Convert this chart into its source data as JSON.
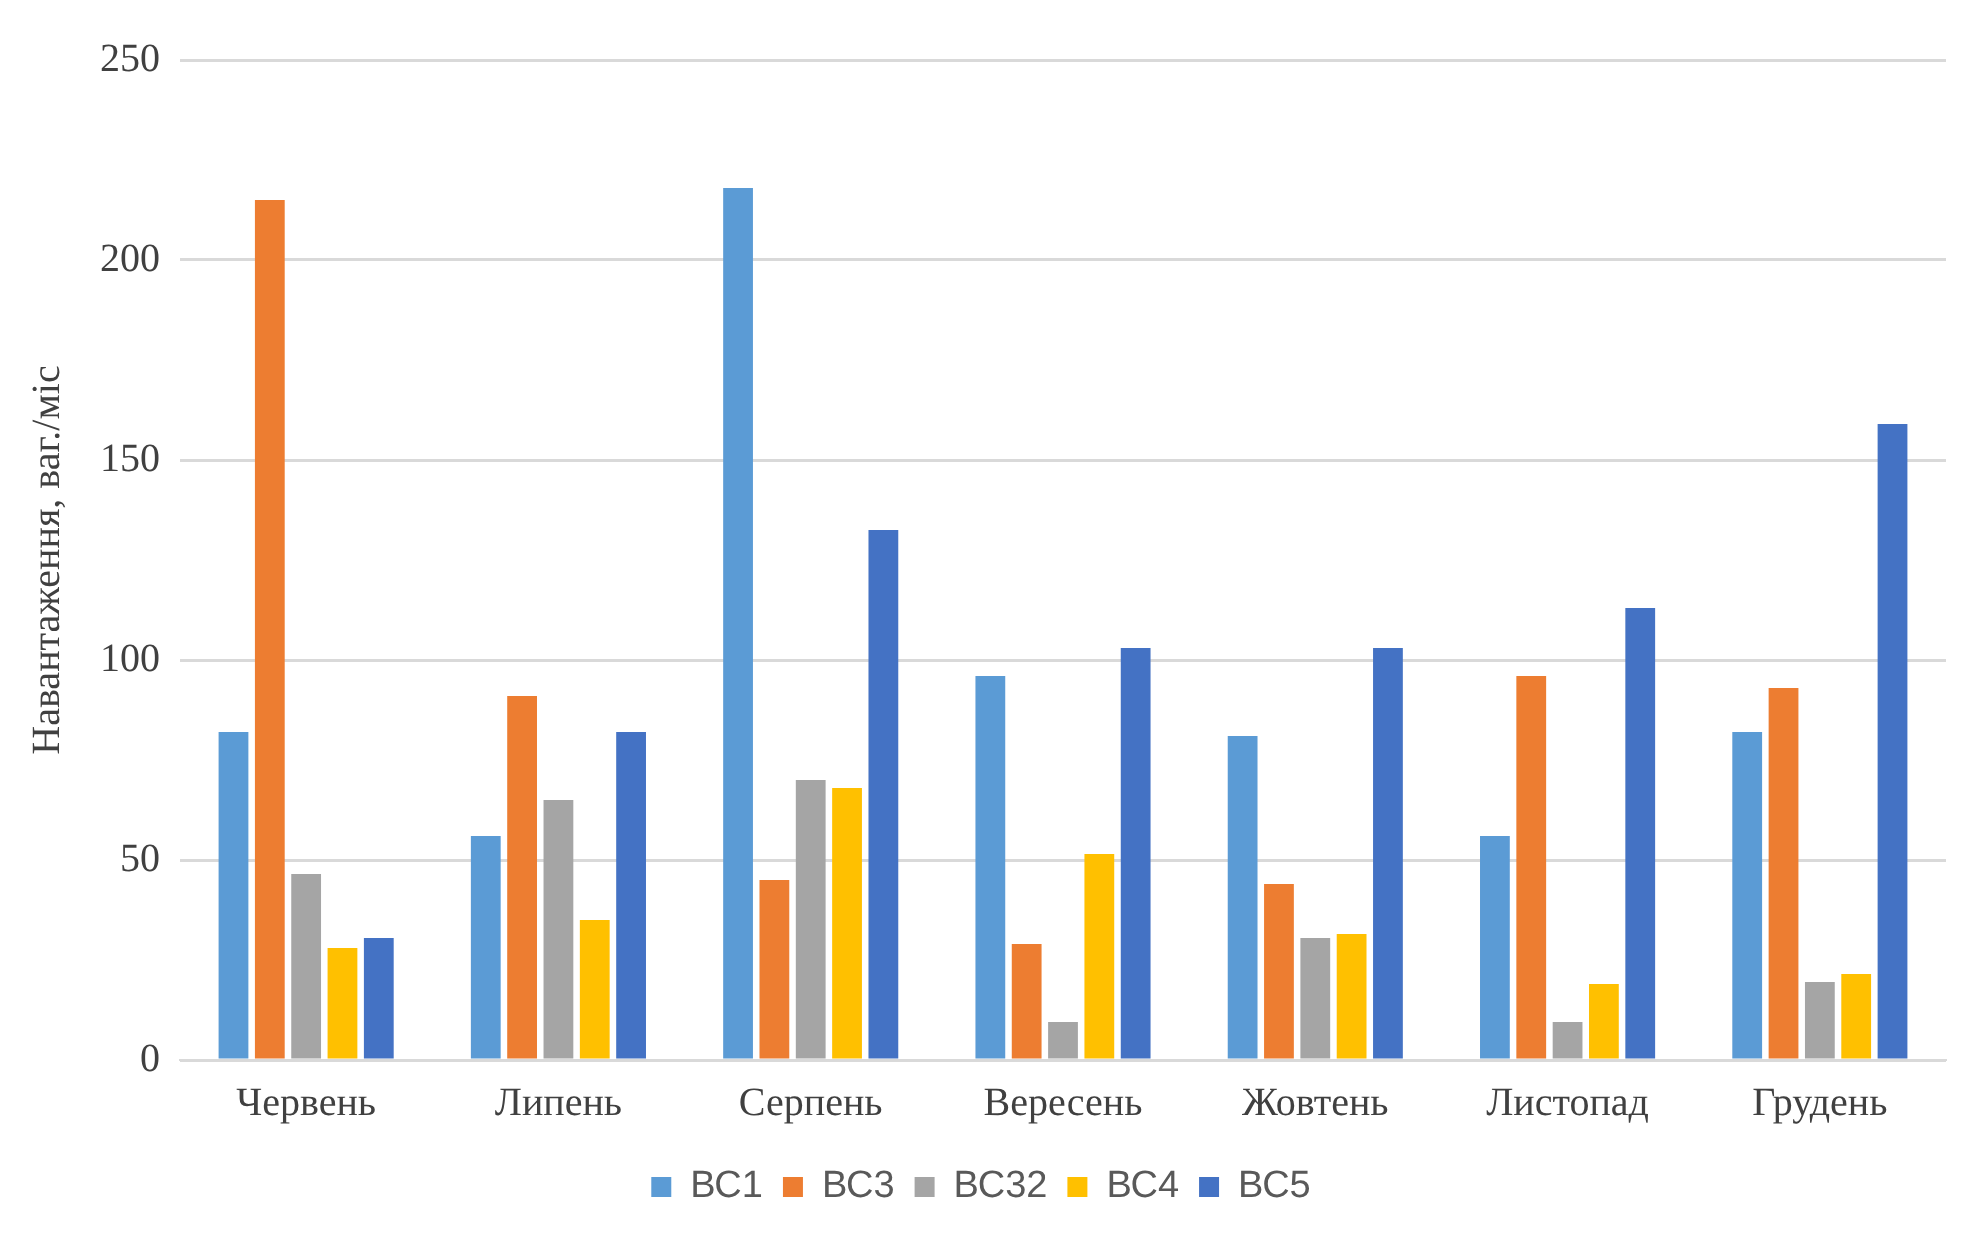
{
  "chart_data": {
    "type": "bar",
    "ylabel": "Навантаження, ваг./міс",
    "categories": [
      "Червень",
      "Липень",
      "Серпень",
      "Вересень",
      "Жовтень",
      "Листопад",
      "Грудень"
    ],
    "series": [
      {
        "name": "ВС1",
        "color": "#5b9bd5",
        "values": [
          82,
          56,
          218,
          96,
          81,
          56,
          82
        ]
      },
      {
        "name": "ВС3",
        "color": "#ed7d31",
        "values": [
          215,
          91,
          45,
          29,
          44,
          96,
          93
        ]
      },
      {
        "name": "ВС32",
        "color": "#a5a5a5",
        "values": [
          46.5,
          65,
          70,
          9.5,
          30.5,
          9.5,
          19.5
        ]
      },
      {
        "name": "ВС4",
        "color": "#ffc000",
        "values": [
          28,
          35,
          68,
          51.5,
          31.5,
          19,
          21.5
        ]
      },
      {
        "name": "ВС5",
        "color": "#4472c4",
        "values": [
          30.5,
          82,
          132.5,
          103,
          103,
          113,
          159
        ]
      }
    ],
    "ylim": [
      0,
      250
    ],
    "yticks": [
      0,
      50,
      100,
      150,
      200,
      250
    ],
    "grid": "y",
    "legend": "bottom"
  }
}
